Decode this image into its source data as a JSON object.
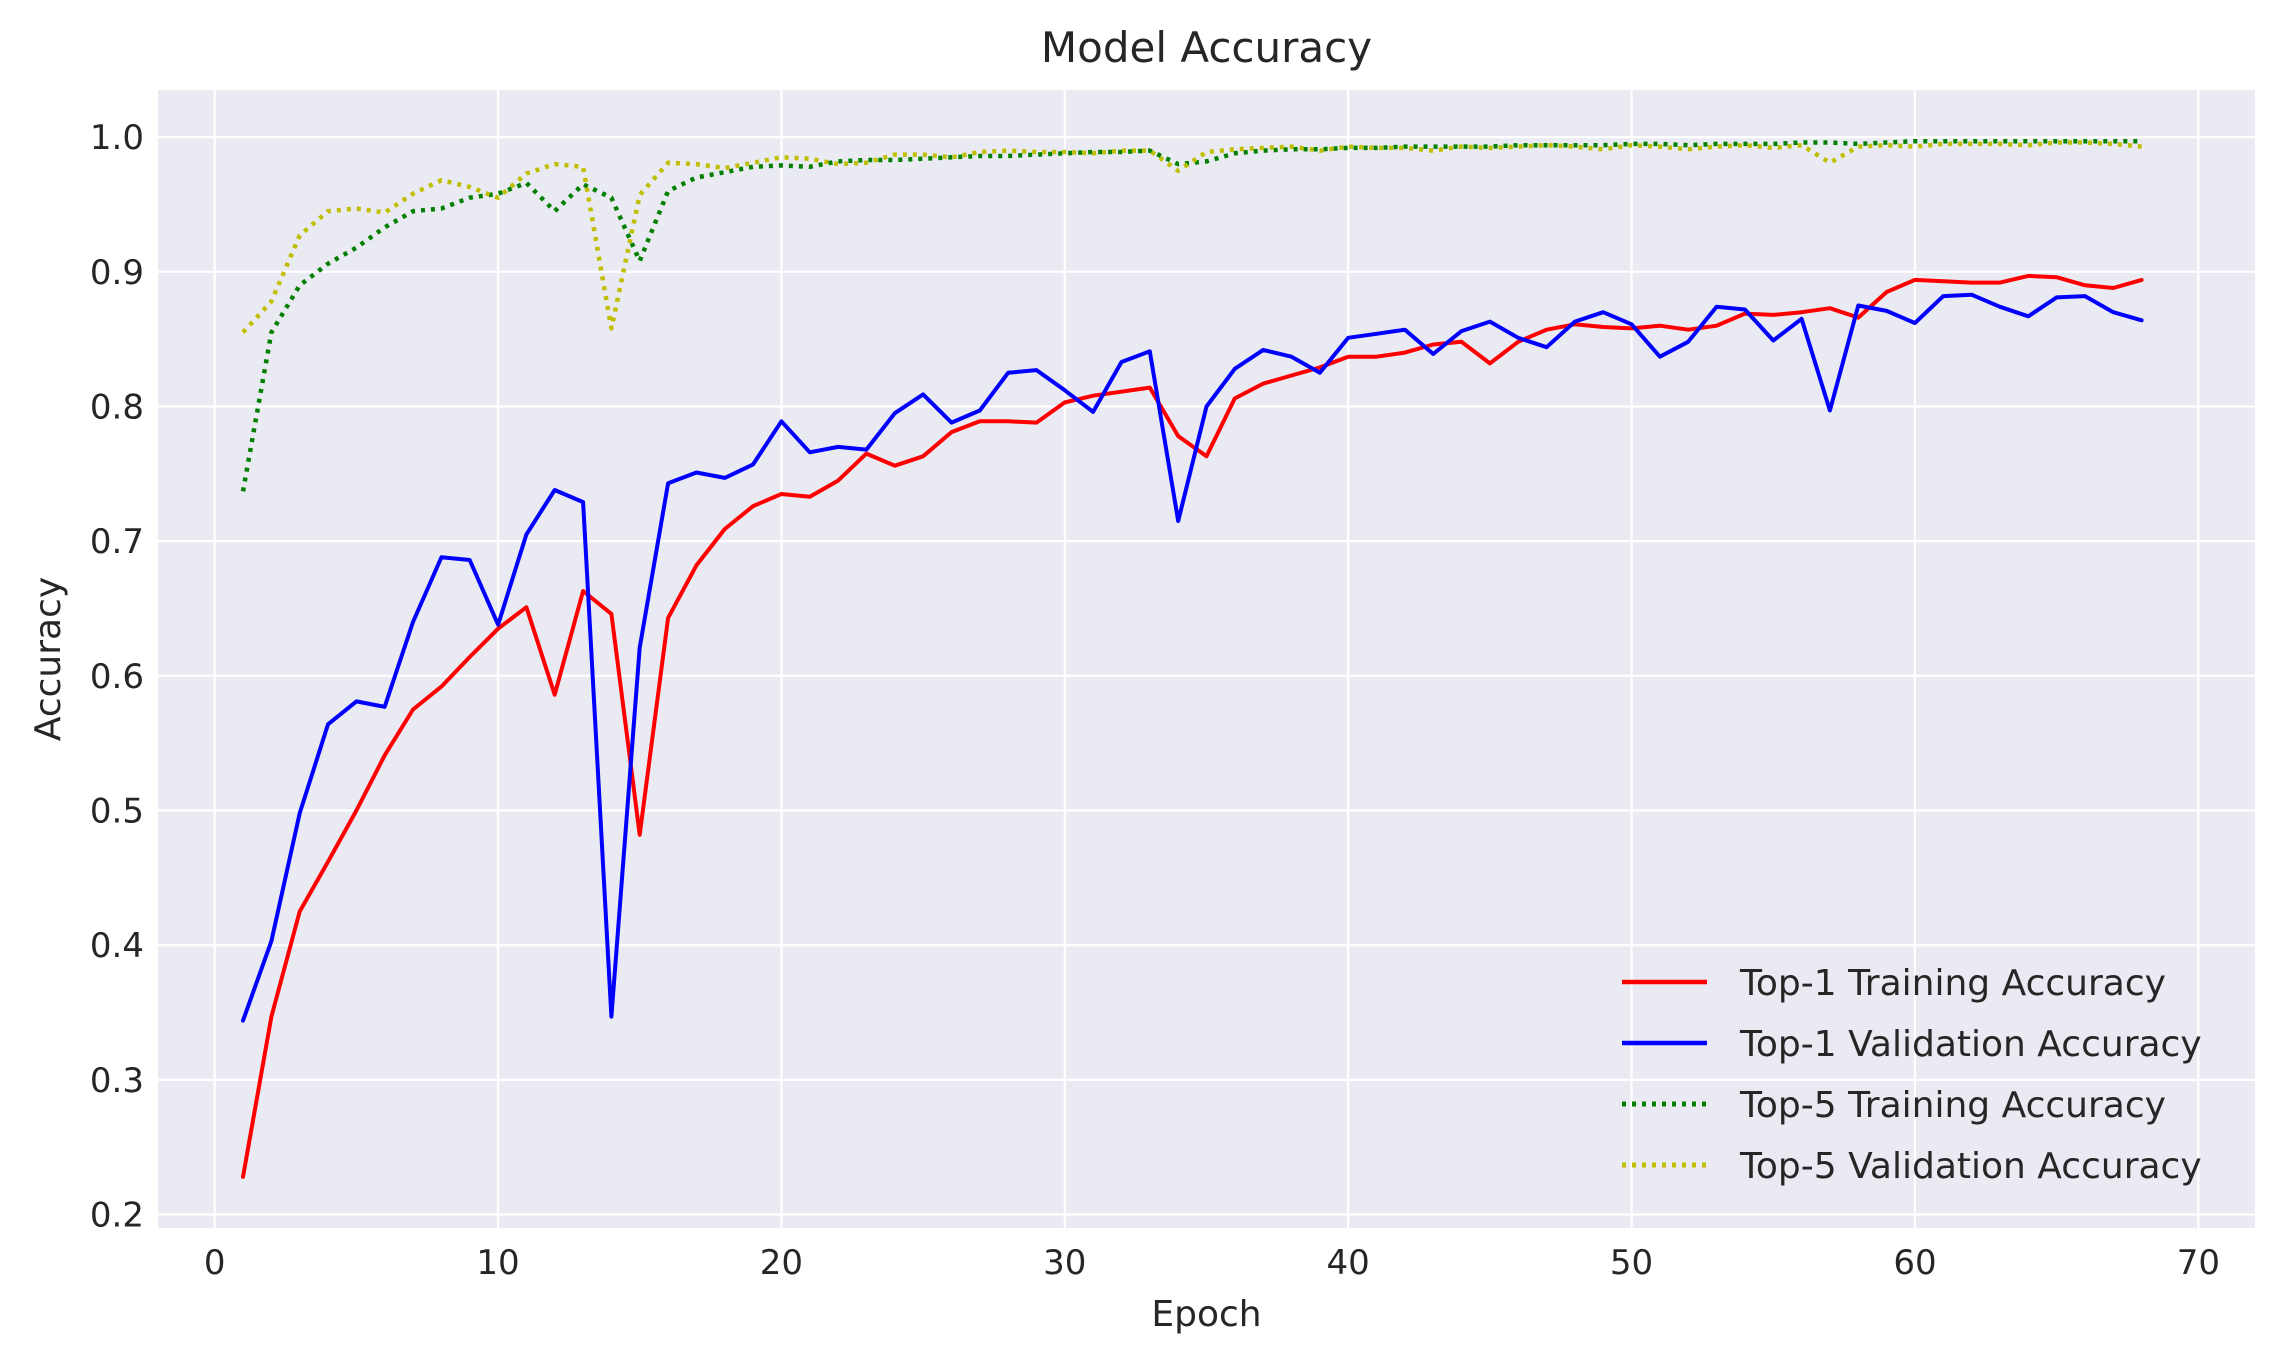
{
  "chart_data": {
    "type": "line",
    "title": "Model Accuracy",
    "xlabel": "Epoch",
    "ylabel": "Accuracy",
    "xlim": [
      -2,
      72
    ],
    "ylim": [
      0.19,
      1.035
    ],
    "xticks": [
      0,
      10,
      20,
      30,
      40,
      50,
      60,
      70
    ],
    "yticks": [
      0.2,
      0.3,
      0.4,
      0.5,
      0.6,
      0.7,
      0.8,
      0.9,
      1.0
    ],
    "xtick_labels": [
      "0",
      "10",
      "20",
      "30",
      "40",
      "50",
      "60",
      "70"
    ],
    "ytick_labels": [
      "0.2",
      "0.3",
      "0.4",
      "0.5",
      "0.6",
      "0.7",
      "0.8",
      "0.9",
      "1.0"
    ],
    "grid": true,
    "legend_position": "lower-right",
    "background": "#eaeaf2",
    "x": [
      1,
      2,
      3,
      4,
      5,
      6,
      7,
      8,
      9,
      10,
      11,
      12,
      13,
      14,
      15,
      16,
      17,
      18,
      19,
      20,
      21,
      22,
      23,
      24,
      25,
      26,
      27,
      28,
      29,
      30,
      31,
      32,
      33,
      34,
      35,
      36,
      37,
      38,
      39,
      40,
      41,
      42,
      43,
      44,
      45,
      46,
      47,
      48,
      49,
      50,
      51,
      52,
      53,
      54,
      55,
      56,
      57,
      58,
      59,
      60,
      61,
      62,
      63,
      64,
      65,
      66,
      67,
      68
    ],
    "series": [
      {
        "name": "Top-1 Training Accuracy",
        "color": "#ff0000",
        "style": "solid",
        "values": [
          0.228,
          0.347,
          0.425,
          0.462,
          0.5,
          0.541,
          0.575,
          0.592,
          0.614,
          0.635,
          0.651,
          0.586,
          0.663,
          0.646,
          0.482,
          0.643,
          0.682,
          0.709,
          0.726,
          0.735,
          0.733,
          0.745,
          0.765,
          0.756,
          0.763,
          0.781,
          0.789,
          0.789,
          0.788,
          0.803,
          0.808,
          0.811,
          0.814,
          0.778,
          0.763,
          0.806,
          0.817,
          0.823,
          0.829,
          0.837,
          0.837,
          0.84,
          0.846,
          0.848,
          0.832,
          0.848,
          0.857,
          0.861,
          0.859,
          0.858,
          0.86,
          0.857,
          0.86,
          0.869,
          0.868,
          0.87,
          0.873,
          0.866,
          0.885,
          0.894,
          0.893,
          0.892,
          0.892,
          0.897,
          0.896,
          0.89,
          0.888,
          0.894
        ]
      },
      {
        "name": "Top-1 Validation Accuracy",
        "color": "#0000ff",
        "style": "solid",
        "values": [
          0.344,
          0.403,
          0.498,
          0.564,
          0.581,
          0.577,
          0.64,
          0.688,
          0.686,
          0.638,
          0.705,
          0.738,
          0.729,
          0.347,
          0.621,
          0.743,
          0.751,
          0.747,
          0.757,
          0.789,
          0.766,
          0.77,
          0.768,
          0.795,
          0.809,
          0.788,
          0.797,
          0.825,
          0.827,
          0.812,
          0.796,
          0.833,
          0.841,
          0.715,
          0.8,
          0.828,
          0.842,
          0.837,
          0.825,
          0.851,
          0.854,
          0.857,
          0.839,
          0.856,
          0.863,
          0.851,
          0.844,
          0.863,
          0.87,
          0.861,
          0.837,
          0.848,
          0.874,
          0.872,
          0.849,
          0.865,
          0.797,
          0.875,
          0.871,
          0.862,
          0.882,
          0.883,
          0.874,
          0.867,
          0.881,
          0.882,
          0.87,
          0.864
        ]
      },
      {
        "name": "Top-5 Training Accuracy",
        "color": "#007f00",
        "style": "dotted",
        "values": [
          0.737,
          0.855,
          0.89,
          0.906,
          0.918,
          0.933,
          0.945,
          0.947,
          0.955,
          0.958,
          0.966,
          0.945,
          0.965,
          0.955,
          0.908,
          0.96,
          0.97,
          0.974,
          0.978,
          0.979,
          0.978,
          0.982,
          0.983,
          0.983,
          0.984,
          0.985,
          0.986,
          0.986,
          0.987,
          0.988,
          0.989,
          0.989,
          0.99,
          0.98,
          0.982,
          0.988,
          0.99,
          0.991,
          0.991,
          0.992,
          0.992,
          0.993,
          0.993,
          0.993,
          0.993,
          0.994,
          0.994,
          0.994,
          0.994,
          0.995,
          0.995,
          0.994,
          0.995,
          0.995,
          0.995,
          0.996,
          0.996,
          0.995,
          0.996,
          0.997,
          0.997,
          0.997,
          0.997,
          0.997,
          0.997,
          0.997,
          0.997,
          0.997
        ]
      },
      {
        "name": "Top-5 Validation Accuracy",
        "color": "#bfbf00",
        "style": "dotted",
        "values": [
          0.855,
          0.878,
          0.927,
          0.945,
          0.947,
          0.944,
          0.958,
          0.968,
          0.963,
          0.955,
          0.973,
          0.98,
          0.978,
          0.858,
          0.957,
          0.981,
          0.98,
          0.977,
          0.981,
          0.985,
          0.984,
          0.98,
          0.981,
          0.987,
          0.987,
          0.985,
          0.989,
          0.99,
          0.989,
          0.989,
          0.988,
          0.99,
          0.99,
          0.975,
          0.989,
          0.991,
          0.992,
          0.993,
          0.99,
          0.993,
          0.992,
          0.992,
          0.99,
          0.993,
          0.992,
          0.993,
          0.994,
          0.993,
          0.991,
          0.994,
          0.993,
          0.991,
          0.993,
          0.994,
          0.992,
          0.994,
          0.981,
          0.993,
          0.994,
          0.993,
          0.995,
          0.995,
          0.995,
          0.994,
          0.996,
          0.996,
          0.995,
          0.993
        ]
      }
    ]
  }
}
